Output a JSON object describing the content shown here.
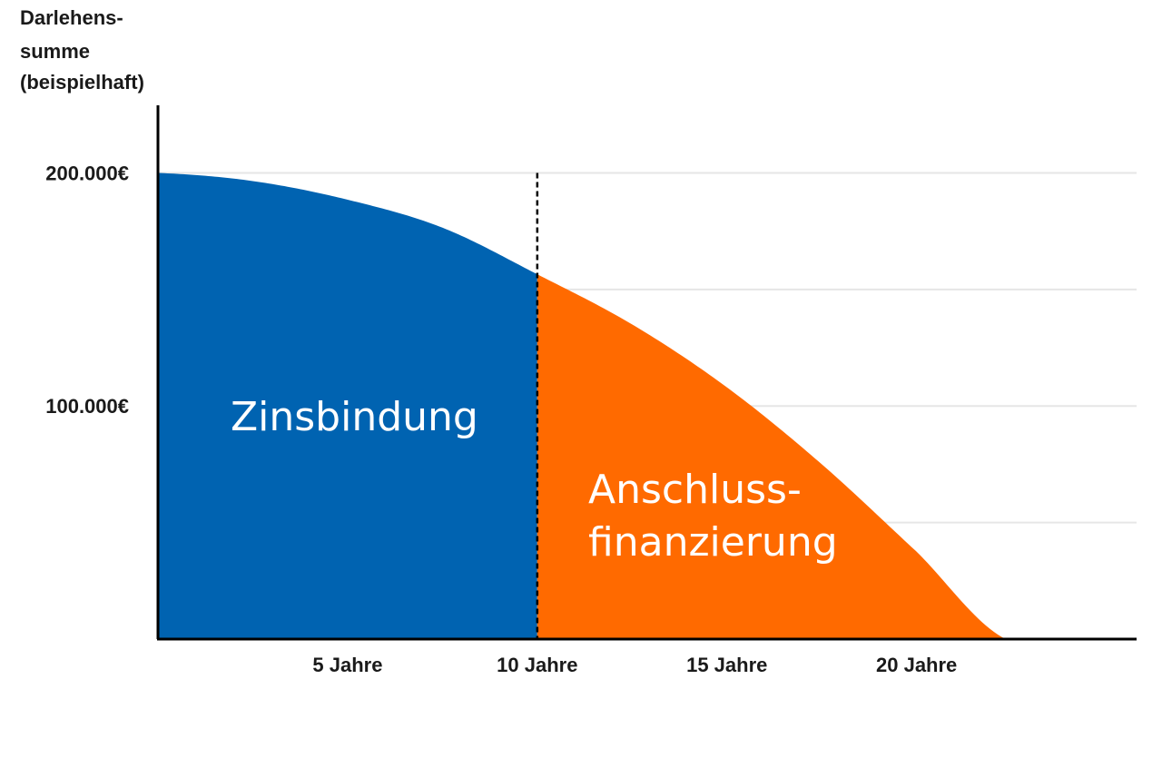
{
  "chart_data": {
    "type": "area",
    "ylabel_lines": [
      "Darlehens-",
      "summe",
      "(beispielhaft)"
    ],
    "x_ticks": [
      {
        "x": 5,
        "label": "5 Jahre"
      },
      {
        "x": 10,
        "label": "10 Jahre"
      },
      {
        "x": 15,
        "label": "15 Jahre"
      },
      {
        "x": 20,
        "label": "20 Jahre"
      }
    ],
    "y_ticks": [
      {
        "y": 200000,
        "label": "200.000€"
      },
      {
        "y": 100000,
        "label": "100.000€"
      }
    ],
    "xlim": [
      0,
      25.8
    ],
    "ylim": [
      0,
      229000
    ],
    "grid_y": [
      50000,
      100000,
      150000,
      200000
    ],
    "grid": true,
    "curve": [
      {
        "x": 0,
        "y": 200000
      },
      {
        "x": 2.5,
        "y": 196500
      },
      {
        "x": 5,
        "y": 188500
      },
      {
        "x": 7.5,
        "y": 176500
      },
      {
        "x": 10,
        "y": 156500
      },
      {
        "x": 12.5,
        "y": 135000
      },
      {
        "x": 15,
        "y": 108000
      },
      {
        "x": 17.5,
        "y": 75000
      },
      {
        "x": 20,
        "y": 37500
      },
      {
        "x": 22.35,
        "y": 0
      }
    ],
    "split_x": 10,
    "regions": [
      {
        "label_lines": [
          "Zinsbindung"
        ],
        "color": "#0063b1",
        "x_from": 0,
        "x_to": 10
      },
      {
        "label_lines": [
          "Anschluss-",
          "finanzierung"
        ],
        "color": "#ff6a00",
        "x_from": 10,
        "x_to": 22.35
      }
    ]
  }
}
